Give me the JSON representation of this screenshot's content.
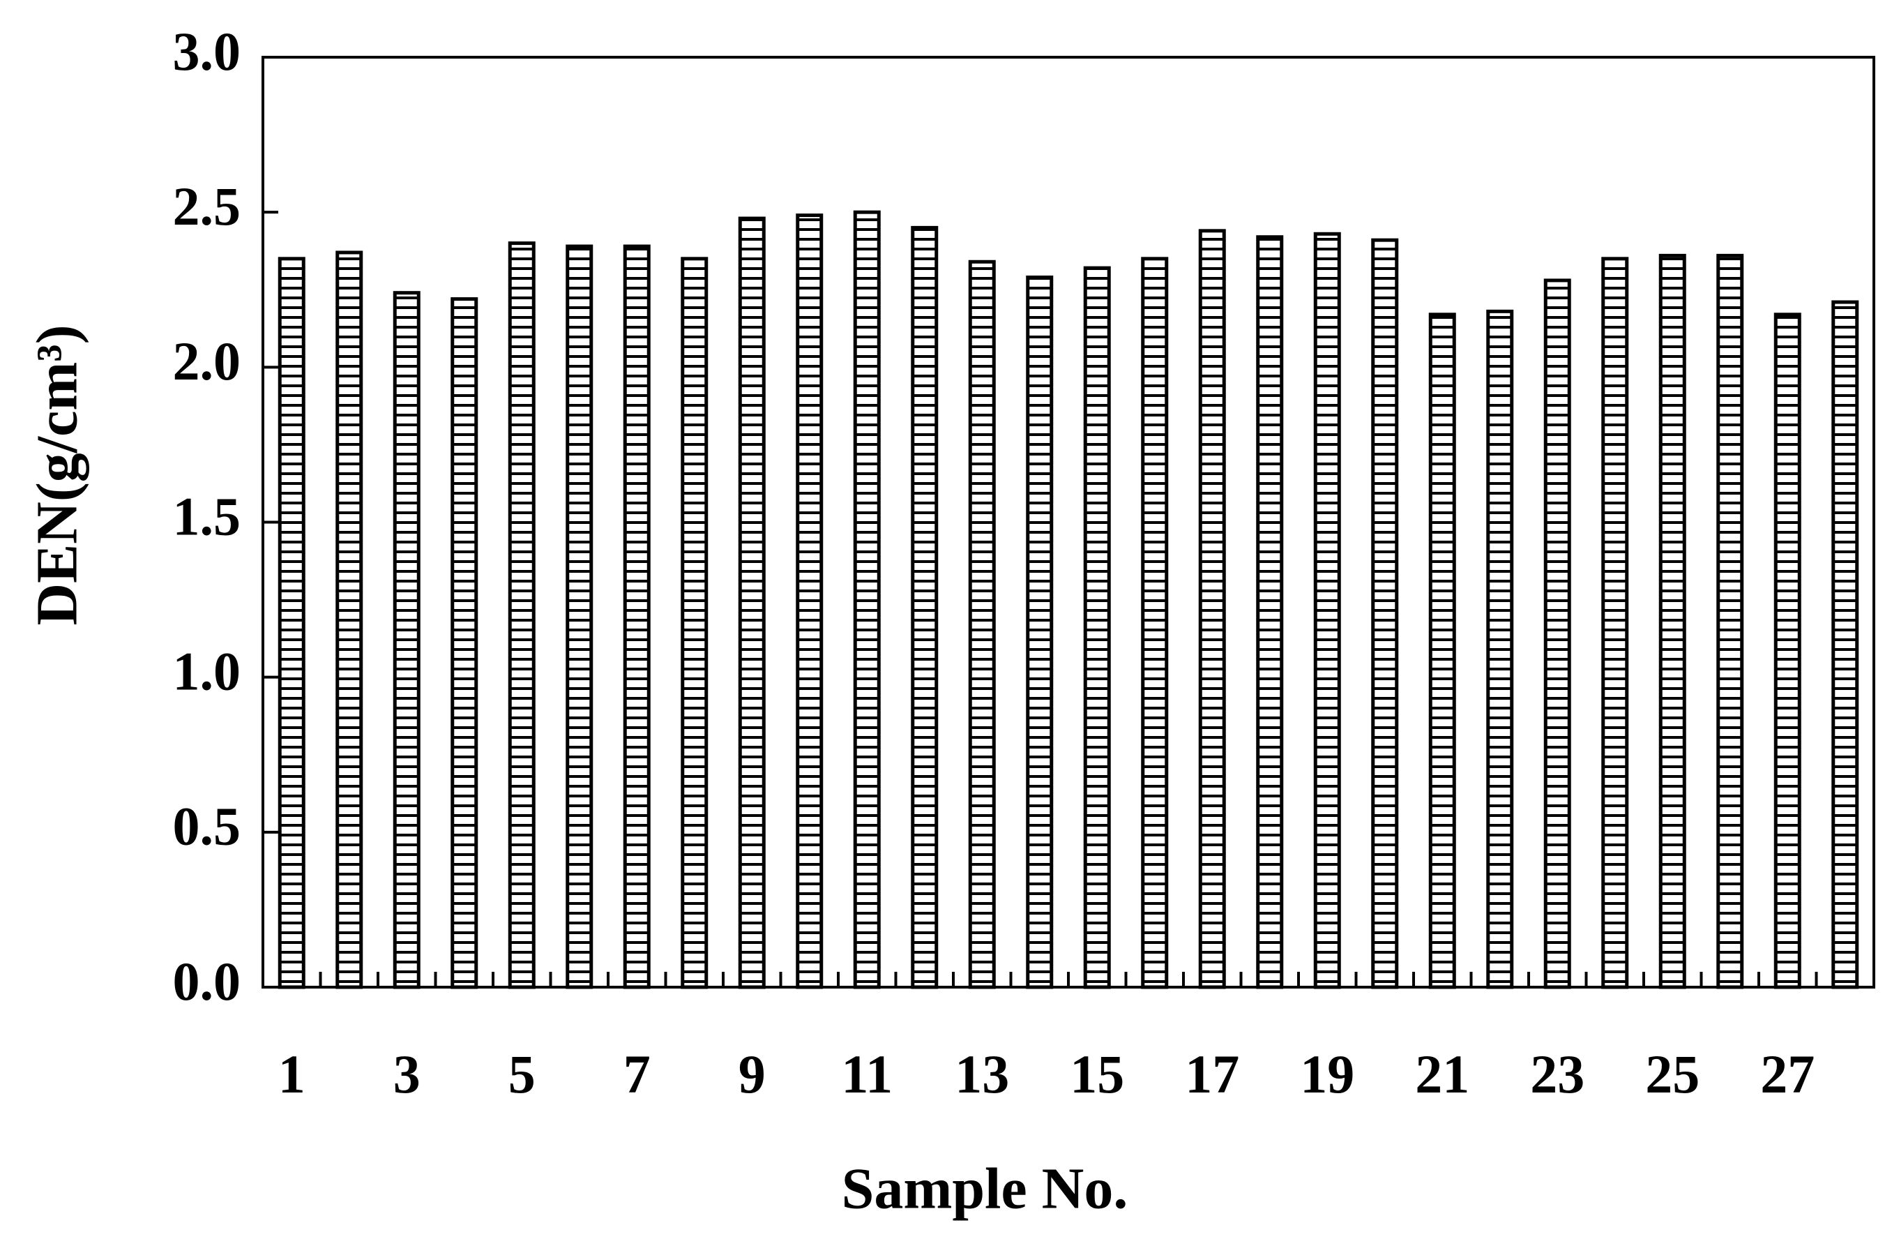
{
  "chart_data": {
    "type": "bar",
    "x_label": "Sample No.",
    "y_label": "DEN(g/cm³)",
    "categories": [
      "1",
      null,
      "3",
      null,
      "5",
      null,
      "7",
      null,
      "9",
      null,
      "11",
      null,
      "13",
      null,
      "15",
      null,
      "17",
      null,
      "19",
      null,
      "21",
      null,
      "23",
      null,
      "25",
      null,
      "27",
      null
    ],
    "values": [
      2.35,
      2.37,
      2.24,
      2.22,
      2.4,
      2.39,
      2.39,
      2.35,
      2.48,
      2.49,
      2.5,
      2.45,
      2.34,
      2.29,
      2.32,
      2.35,
      2.44,
      2.42,
      2.43,
      2.41,
      2.17,
      2.18,
      2.28,
      2.35,
      2.36,
      2.36,
      2.17,
      2.21
    ],
    "color": "#000000",
    "ylim": [
      0,
      3
    ],
    "yticks": [
      {
        "value": 0,
        "label": "0.0"
      },
      {
        "value": 0.5,
        "label": "0.5"
      },
      {
        "value": 1,
        "label": "1.0"
      },
      {
        "value": 1.5,
        "label": "1.5"
      },
      {
        "value": 2,
        "label": "2.0"
      },
      {
        "value": 2.5,
        "label": "2.5"
      },
      {
        "value": 3,
        "label": "3.0"
      }
    ],
    "grid": false
  }
}
